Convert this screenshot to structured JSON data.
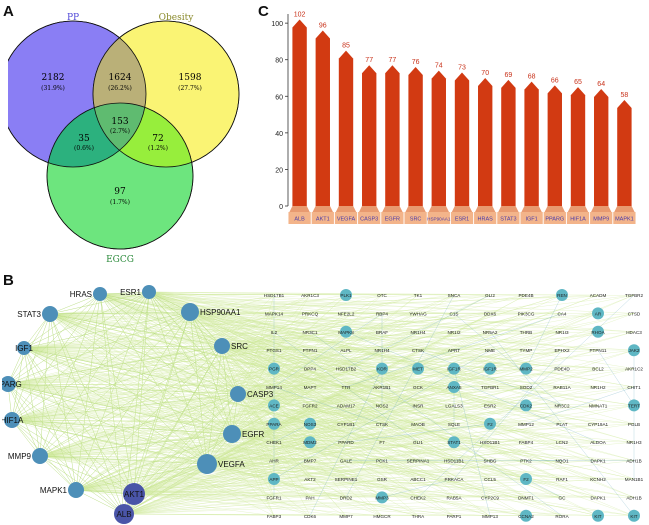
{
  "panels": {
    "a": "A",
    "b": "B",
    "c": "C"
  },
  "venn": {
    "sets": [
      {
        "name": "PP",
        "color": "#6a5cf0",
        "label_color": "#5048d8"
      },
      {
        "name": "Obesity",
        "color": "#f7f35a",
        "label_color": "#8a8a2a"
      },
      {
        "name": "EGCG",
        "color": "#3fdc5a",
        "label_color": "#2a8a3a"
      }
    ],
    "regions": [
      {
        "id": "pp-only",
        "count": "2182",
        "pct": "(31.9%)"
      },
      {
        "id": "pp-obesity",
        "count": "1624",
        "pct": "(26.2%)"
      },
      {
        "id": "obesity-only",
        "count": "1598",
        "pct": "(27.7%)"
      },
      {
        "id": "all-three",
        "count": "153",
        "pct": "(2.7%)"
      },
      {
        "id": "pp-egcg",
        "count": "35",
        "pct": "(0.6%)"
      },
      {
        "id": "obesity-egcg",
        "count": "72",
        "pct": "(1.2%)"
      },
      {
        "id": "egcg-only",
        "count": "97",
        "pct": "(1.7%)"
      }
    ]
  },
  "chart_data": {
    "type": "bar",
    "categories": [
      "ALB",
      "AKT1",
      "VEGFA",
      "CASP3",
      "EGFR",
      "SRC",
      "HSP90AA1",
      "ESR1",
      "HRAS",
      "STAT3",
      "IGF1",
      "PPARG",
      "HIF1A",
      "MMP9",
      "MAPK1"
    ],
    "values": [
      102,
      96,
      85,
      77,
      77,
      76,
      74,
      73,
      70,
      69,
      68,
      66,
      65,
      64,
      58
    ],
    "ylim": [
      0,
      105
    ],
    "yticks": [
      "0",
      "20",
      "40",
      "60",
      "80",
      "100"
    ],
    "bar_color": "#d23a12",
    "label_color": "#c8321a",
    "category_box_color": "#f3b48a",
    "category_text_color": "#4a3aa8",
    "grid": false
  },
  "network": {
    "hubs": [
      {
        "label": "HRAS",
        "size": 1
      },
      {
        "label": "ESR1",
        "size": 1
      },
      {
        "label": "STAT3",
        "size": 1
      },
      {
        "label": "HSP90AA1",
        "size": 2
      },
      {
        "label": "IGF1",
        "size": 1
      },
      {
        "label": "SRC",
        "size": 1
      },
      {
        "label": "PPARG",
        "size": 1
      },
      {
        "label": "CASP3",
        "size": 1
      },
      {
        "label": "HIF1A",
        "size": 1
      },
      {
        "label": "EGFR",
        "size": 2
      },
      {
        "label": "MMP9",
        "size": 1
      },
      {
        "label": "VEGFA",
        "size": 2
      },
      {
        "label": "MAPK1",
        "size": 1
      },
      {
        "label": "AKT1",
        "size": 3
      },
      {
        "label": "ALB",
        "size": 3
      }
    ],
    "grid_columns": [
      [
        "HSD17B1",
        "MAPK14",
        "IL2",
        "PTGS1",
        "PGR",
        "MMP14",
        "ACE",
        "PPARA",
        "CHEK1",
        "AHR",
        "APP",
        "FGFR1",
        "FABP3"
      ],
      [
        "AKR1C3",
        "PRKCQ",
        "NR3C1",
        "PTPN1",
        "DPP4",
        "MAPT",
        "FGFR2",
        "NOS3",
        "MDM2",
        "BMP7",
        "AKT2",
        "PAH",
        "CDK6"
      ],
      [
        "PLK1",
        "NFE2L2",
        "MAPK8",
        "ALPL",
        "HSD17B2",
        "TTR",
        "ADAM17",
        "CYP1B1",
        "PPARD",
        "GALE",
        "SERPINE1",
        "DRD2",
        "MMP7"
      ],
      [
        "OTC",
        "RBP4",
        "BRAF",
        "NR1H4",
        "KDR",
        "AKR1B1",
        "NOS2",
        "CTSK",
        "F7",
        "PCK1",
        "GSR",
        "MMP3",
        "HMGCR"
      ],
      [
        "TK1",
        "YWHAG",
        "NR1H4",
        "CTSK",
        "MET",
        "GCK",
        "INSR",
        "MAOB",
        "GLI1",
        "SERPINA1",
        "ABCC1",
        "CHEK2",
        "THRA"
      ],
      [
        "SNCA",
        "C1S",
        "NR1I2",
        "APRT",
        "IGF1R",
        "ANXA5",
        "LGALS3",
        "SQLE",
        "STAT1",
        "HSD11B1",
        "PRKACA",
        "RAB5A",
        "PARP1"
      ],
      [
        "GLI2",
        "DDX6",
        "NR5A2",
        "NME",
        "IGF1R",
        "TGFBR1",
        "ESR2",
        "F2",
        "HSD11B1",
        "SHBG",
        "CCL5",
        "CYP2C9",
        "MMP13"
      ],
      [
        "PDE4B",
        "PIK3CG",
        "THRB",
        "TYMP",
        "MMP2",
        "SOD2",
        "CDK2",
        "MMP12",
        "FABP4",
        "PTK2",
        "F2",
        "DNMT1",
        "CCNA2"
      ],
      [
        "REN",
        "CA4",
        "NR1I3",
        "EPHX2",
        "PDE4D",
        "RAB11A",
        "NR3C2",
        "PLAT",
        "LCN2",
        "NQO1",
        "RAF1",
        "GC",
        "RORA"
      ],
      [
        "ACADM",
        "AR",
        "RHOA",
        "PTPN11",
        "BCL2",
        "NR1H2",
        "NMNAT1",
        "CYP19A1",
        "ALDOA",
        "DAPK1",
        "KCNH2",
        "DAPK1",
        "KIT"
      ],
      [
        "TGFBR2",
        "CTSD",
        "HDAC3",
        "JAK2",
        "AKR1C2",
        "CHIT1",
        "TERT",
        "PGLB",
        "NR1H3",
        "ADH1B",
        "MAN1B1",
        "ADH1B",
        "KIT"
      ]
    ],
    "colored_nodes": [
      "PGR",
      "ACE",
      "PPARA",
      "APP",
      "NOS3",
      "MDM2",
      "PLK1",
      "MAPK8",
      "KDR",
      "MMP3",
      "MET",
      "IGF1R",
      "ANXA5",
      "STAT1",
      "F2",
      "MMP2",
      "CDK2",
      "REN",
      "AR",
      "RHOA",
      "JAK2",
      "TERT",
      "KIT",
      "CCNA2"
    ]
  }
}
